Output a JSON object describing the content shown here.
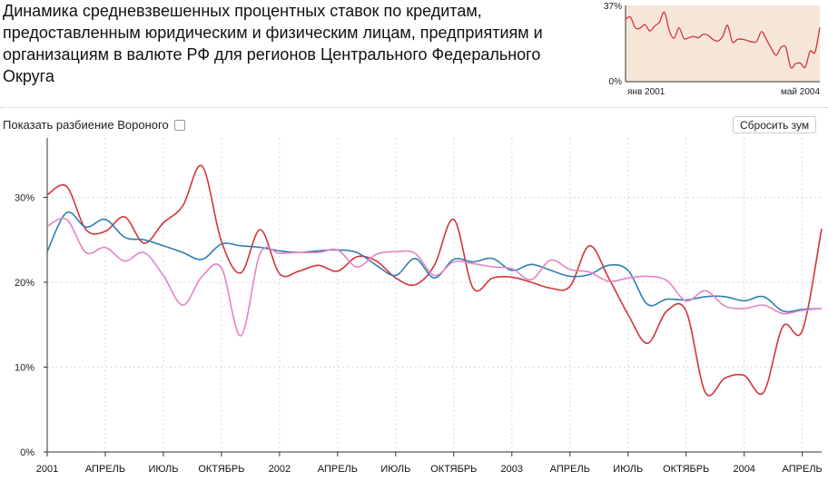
{
  "title": "Динамика средневзвешенных процентных ставок по кредитам, предоставленным юридическим и физическим лицам, предприятиям и организациям в валюте РФ для регионов Центрального Федерального Округа",
  "controls": {
    "voronoi_label": "Показать разбиение Вороного",
    "reset_zoom_label": "Сбросить зум"
  },
  "colors": {
    "red": "#d4343b",
    "blue": "#2f7fb0",
    "pink": "#e383c6",
    "mini_bg": "#f6e6d8"
  },
  "mini_chart": {
    "y_top_label": "37%",
    "y_bottom_label": "0%",
    "x_left_label": "янв 2001",
    "x_right_label": "май 2004"
  },
  "chart_data": {
    "type": "line",
    "x": [
      "2001-01",
      "2001-02",
      "2001-03",
      "2001-04",
      "2001-05",
      "2001-06",
      "2001-07",
      "2001-08",
      "2001-09",
      "2001-10",
      "2001-11",
      "2001-12",
      "2002-01",
      "2002-02",
      "2002-03",
      "2002-04",
      "2002-05",
      "2002-06",
      "2002-07",
      "2002-08",
      "2002-09",
      "2002-10",
      "2002-11",
      "2002-12",
      "2003-01",
      "2003-02",
      "2003-03",
      "2003-04",
      "2003-05",
      "2003-06",
      "2003-07",
      "2003-08",
      "2003-09",
      "2003-10",
      "2003-11",
      "2003-12",
      "2004-01",
      "2004-02",
      "2004-03",
      "2004-04",
      "2004-05"
    ],
    "x_tick_labels": [
      "2001",
      "АПРЕЛЬ",
      "ИЮЛЬ",
      "ОКТЯБРЬ",
      "2002",
      "АПРЕЛЬ",
      "ИЮЛЬ",
      "ОКТЯБРЬ",
      "2003",
      "АПРЕЛЬ",
      "ИЮЛЬ",
      "ОКТЯБРЬ",
      "2004",
      "АПРЕЛЬ"
    ],
    "y_ticks": [
      0,
      10,
      20,
      30
    ],
    "y_tick_labels": [
      "0%",
      "10%",
      "20%",
      "30%"
    ],
    "ylim": [
      0,
      37
    ],
    "grid": true,
    "series": [
      {
        "color": "#d4343b",
        "values": [
          30.3,
          31.3,
          26.2,
          26.0,
          27.7,
          24.6,
          27.0,
          29.0,
          33.7,
          24.8,
          21.1,
          26.2,
          21.0,
          21.3,
          22.0,
          21.3,
          23.0,
          22.5,
          20.5,
          19.7,
          22.0,
          27.4,
          19.3,
          20.5,
          20.6,
          20.0,
          19.3,
          19.5,
          24.3,
          20.5,
          16.2,
          12.8,
          16.6,
          16.6,
          7.0,
          8.7,
          9.0,
          7.0,
          14.8,
          14.3,
          26.3
        ]
      },
      {
        "color": "#2f7fb0",
        "values": [
          23.6,
          28.2,
          26.5,
          27.4,
          25.3,
          25.0,
          24.3,
          23.5,
          22.7,
          24.5,
          24.3,
          24.1,
          23.7,
          23.5,
          23.7,
          23.8,
          23.5,
          22.0,
          20.8,
          22.8,
          20.5,
          22.7,
          22.4,
          22.8,
          21.4,
          22.1,
          21.4,
          20.7,
          20.9,
          22.0,
          21.4,
          17.4,
          18.0,
          17.9,
          18.3,
          18.3,
          17.8,
          18.3,
          16.6,
          16.8,
          16.9
        ]
      },
      {
        "color": "#e383c6",
        "values": [
          26.6,
          27.4,
          23.5,
          24.1,
          22.5,
          23.5,
          20.8,
          17.3,
          20.7,
          21.7,
          13.7,
          23.4,
          23.4,
          23.5,
          23.5,
          23.8,
          21.8,
          23.3,
          23.6,
          23.4,
          20.8,
          22.4,
          22.2,
          21.8,
          21.6,
          20.3,
          22.6,
          21.5,
          21.2,
          20.1,
          20.5,
          20.7,
          20.2,
          17.8,
          19.0,
          17.2,
          16.9,
          17.3,
          16.3,
          16.7,
          16.9
        ]
      }
    ]
  }
}
